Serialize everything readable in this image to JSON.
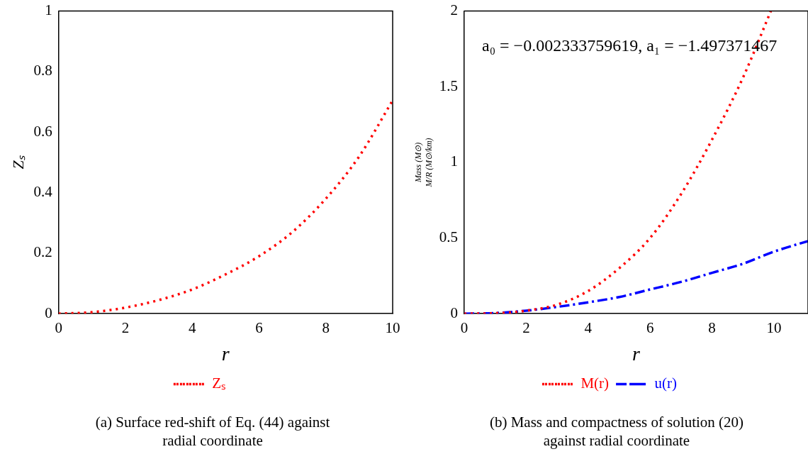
{
  "chart_data": [
    {
      "type": "line",
      "xlabel": "r",
      "ylabel": "Zₛ",
      "xlim": [
        0,
        10
      ],
      "xticks": [
        0,
        2,
        4,
        6,
        8,
        10
      ],
      "ylim": [
        0,
        1
      ],
      "yticks": [
        0,
        0.2,
        0.4,
        0.6,
        0.8,
        1
      ],
      "grid": false,
      "legend": "bottom",
      "marker": "none",
      "x": [
        0,
        1,
        2,
        3,
        4,
        5,
        6,
        7,
        8,
        9,
        10
      ],
      "series": [
        {
          "name": "Zₛ",
          "color": "#ff0000",
          "line_style": "dotted",
          "values": [
            0,
            0.005,
            0.02,
            0.045,
            0.08,
            0.13,
            0.19,
            0.27,
            0.38,
            0.52,
            0.705
          ]
        }
      ],
      "annotations": [
        "(a) Surface red-shift of Eq. (44) against radial coordinate"
      ]
    },
    {
      "type": "line",
      "xlabel": "r",
      "ylabel": "Mass (M⊙)\nM/R (M⊙/km)",
      "xlim": [
        0,
        11.1
      ],
      "xticks": [
        0,
        2,
        4,
        6,
        8,
        10
      ],
      "ylim": [
        0,
        2
      ],
      "yticks": [
        0,
        0.5,
        1,
        1.5,
        2
      ],
      "grid": false,
      "legend": "bottom",
      "marker": "none",
      "series": [
        {
          "name": "M(r)",
          "color": "#ff0000",
          "line_style": "dotted",
          "x": [
            0,
            1,
            2,
            3,
            4,
            5,
            6,
            7,
            8,
            9,
            9.9
          ],
          "values": [
            0,
            0.003,
            0.02,
            0.06,
            0.15,
            0.3,
            0.5,
            0.79,
            1.15,
            1.56,
            2.0
          ]
        },
        {
          "name": "u(r)",
          "color": "#0000ff",
          "line_style": "dashed",
          "x": [
            0,
            1,
            2,
            3,
            4,
            5,
            6,
            7,
            8,
            9,
            10,
            11.1
          ],
          "values": [
            0,
            0.004,
            0.02,
            0.045,
            0.075,
            0.11,
            0.16,
            0.21,
            0.27,
            0.33,
            0.41,
            0.48
          ]
        }
      ],
      "annotations": [
        "a₀ = −0.002333759619, a₁ = −1.497371467",
        "(b) Mass and compactness of solution (20) against radial coordinate"
      ]
    }
  ]
}
